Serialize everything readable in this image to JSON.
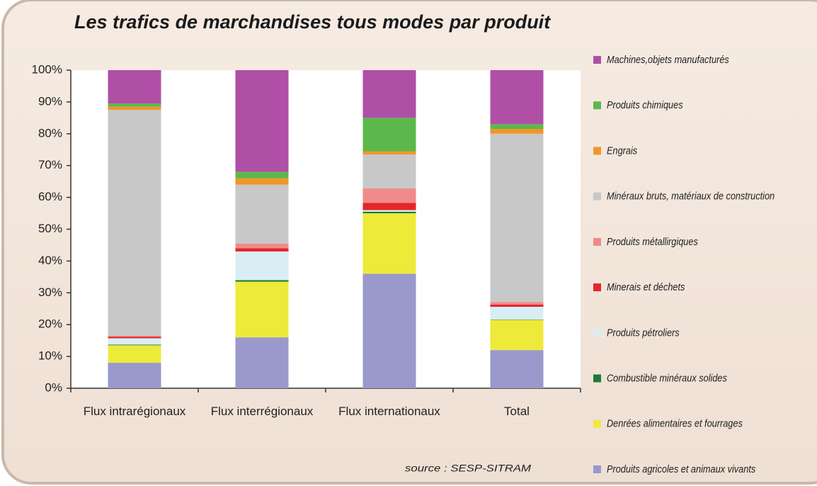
{
  "chart_data": {
    "type": "stacked_bar_100",
    "title": "Les trafics de marchandises tous modes par produit",
    "source": "source : SESP-SITRAM",
    "categories": [
      "Flux intrarégionaux",
      "Flux interrégionaux",
      "Flux internationaux",
      "Total"
    ],
    "ylim": [
      0,
      100
    ],
    "yticks": [
      {
        "value": 0,
        "label": "0%"
      },
      {
        "value": 10,
        "label": "10%"
      },
      {
        "value": 20,
        "label": "20%"
      },
      {
        "value": 30,
        "label": "30%"
      },
      {
        "value": 40,
        "label": "40%"
      },
      {
        "value": 50,
        "label": "50%"
      },
      {
        "value": 60,
        "label": "60%"
      },
      {
        "value": 70,
        "label": "70%"
      },
      {
        "value": 80,
        "label": "80%"
      },
      {
        "value": 90,
        "label": "90%"
      },
      {
        "value": 100,
        "label": "100%"
      }
    ],
    "grid": false,
    "legend": "right",
    "series": [
      {
        "name": "Produits agricoles et animaux vivants",
        "color": "#9999cc",
        "values": [
          8,
          16,
          36,
          12
        ]
      },
      {
        "name": "Denrées alimentaires et fourrages",
        "color": "#eeea3a",
        "values": [
          5.5,
          17.5,
          19,
          9.5
        ]
      },
      {
        "name": "Combustible minéraux solides",
        "color": "#1a7a3a",
        "values": [
          0.2,
          0.5,
          0.5,
          0.1
        ]
      },
      {
        "name": "Produits pétroliers",
        "color": "#d8eef4",
        "values": [
          2,
          9,
          0.5,
          4
        ]
      },
      {
        "name": "Minerais et déchets",
        "color": "#e3262a",
        "values": [
          0.5,
          1,
          2.3,
          0.7
        ]
      },
      {
        "name": "Produits métallirgiques",
        "color": "#f08a8a",
        "values": [
          0.3,
          1.5,
          4.5,
          0.8
        ]
      },
      {
        "name": "Minéraux bruts, matériaux de construction",
        "color": "#c8c8c8",
        "values": [
          71,
          18.5,
          10.7,
          52.9
        ]
      },
      {
        "name": "Engrais",
        "color": "#f0962a",
        "values": [
          1,
          2,
          1,
          1.5
        ]
      },
      {
        "name": "Produits chimiques",
        "color": "#5cb84a",
        "values": [
          1,
          2,
          10.5,
          1.5
        ]
      },
      {
        "name": "Machines,objets manufacturés",
        "color": "#b04fa6",
        "values": [
          10.5,
          32,
          15,
          17
        ]
      }
    ]
  }
}
